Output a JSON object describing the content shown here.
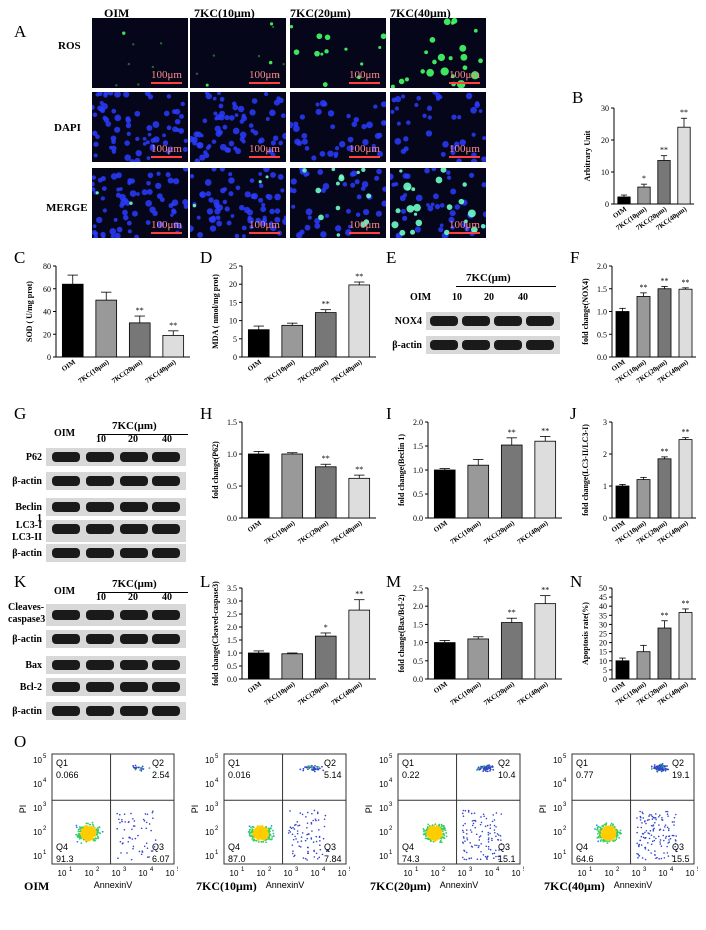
{
  "panel_letters": {
    "A": "A",
    "B": "B",
    "C": "C",
    "D": "D",
    "E": "E",
    "F": "F",
    "G": "G",
    "H": "H",
    "I": "I",
    "J": "J",
    "K": "K",
    "L": "L",
    "M": "M",
    "N": "N",
    "O": "O"
  },
  "panelA": {
    "columns": [
      "OIM",
      "7KC(10μm)",
      "7KC(20μm)",
      "7KC(40μm)"
    ],
    "rows": [
      "ROS",
      "DAPI",
      "MERGE"
    ],
    "scale_label": "100μm"
  },
  "panelE": {
    "header": "7KC(μm)",
    "lanes": [
      "OIM",
      "10",
      "20",
      "40"
    ],
    "rows": [
      "NOX4",
      "β-actin"
    ]
  },
  "panelG": {
    "header": "7KC(μm)",
    "lanes": [
      "OIM",
      "10",
      "20",
      "40"
    ],
    "rows": [
      "P62",
      "β-actin",
      "Beclin 1",
      "LC3-I",
      "LC3-II",
      "β-actin"
    ]
  },
  "panelK": {
    "header": "7KC(μm)",
    "lanes": [
      "OIM",
      "10",
      "20",
      "40"
    ],
    "rows": [
      "Cleaves-",
      "caspase3",
      "β-actin",
      "Bax",
      "Bcl-2",
      "β-actin"
    ]
  },
  "colors": {
    "c0": "#000000",
    "c1": "#999999",
    "c2": "#777777",
    "c3": "#dddddd"
  },
  "chart_data": [
    {
      "id": "B",
      "type": "bar",
      "ylabel": "Arbitrary Unit",
      "categories": [
        "OIM",
        "7KC(10μm)",
        "7KC(20μm)",
        "7KC(40μm)"
      ],
      "values": [
        2.2,
        5.3,
        13.6,
        24
      ],
      "errors": [
        0.6,
        0.9,
        1.5,
        2.8
      ],
      "sig": [
        "",
        "*",
        "**",
        "**"
      ],
      "ylim": [
        0,
        30
      ],
      "yticks": [
        "0",
        "10",
        "20",
        "30"
      ]
    },
    {
      "id": "C",
      "type": "bar",
      "ylabel": "SOD ( U/mg prot)",
      "categories": [
        "OIM",
        "7KC(10μm)",
        "7KC(20μm)",
        "7KC(40μm)"
      ],
      "values": [
        64,
        50,
        30,
        19
      ],
      "errors": [
        8,
        7,
        6,
        4
      ],
      "sig": [
        "",
        "",
        "**",
        "**"
      ],
      "ylim": [
        0,
        80
      ],
      "yticks": [
        "0",
        "20",
        "40",
        "60",
        "80"
      ]
    },
    {
      "id": "D",
      "type": "bar",
      "ylabel": "MDA ( nmol/mg prot)",
      "categories": [
        "OIM",
        "7KC(10μm)",
        "7KC(20μm)",
        "7KC(40μm)"
      ],
      "values": [
        7.5,
        8.7,
        12.2,
        19.8
      ],
      "errors": [
        1.0,
        0.6,
        0.8,
        0.8
      ],
      "sig": [
        "",
        "",
        "**",
        "**"
      ],
      "ylim": [
        0,
        25
      ],
      "yticks": [
        "0",
        "5",
        "10",
        "15",
        "20",
        "25"
      ]
    },
    {
      "id": "F",
      "type": "bar",
      "ylabel": "fold change(NOX4)",
      "categories": [
        "OIM",
        "7KC(10μm)",
        "7KC(20μm)",
        "7KC(40μm)"
      ],
      "values": [
        1.0,
        1.33,
        1.5,
        1.49
      ],
      "errors": [
        0.07,
        0.08,
        0.05,
        0.03
      ],
      "sig": [
        "",
        "**",
        "**",
        "**"
      ],
      "ylim": [
        0,
        2.0
      ],
      "yticks": [
        "0.0",
        "0.5",
        "1.0",
        "1.5",
        "2.0"
      ]
    },
    {
      "id": "H",
      "type": "bar",
      "ylabel": "fold change(P62)",
      "categories": [
        "OIM",
        "7KC(10μm)",
        "7KC(20μm)",
        "7KC(40μm)"
      ],
      "values": [
        1.0,
        1.0,
        0.8,
        0.62
      ],
      "errors": [
        0.04,
        0.02,
        0.04,
        0.05
      ],
      "sig": [
        "",
        "",
        "**",
        "**"
      ],
      "ylim": [
        0,
        1.5
      ],
      "yticks": [
        "0.0",
        "0.5",
        "1.0",
        "1.5"
      ]
    },
    {
      "id": "I",
      "type": "bar",
      "ylabel": "fold change(Beclin 1)",
      "categories": [
        "OIM",
        "7KC(10μm)",
        "7KC(20μm)",
        "7KC(40μm)"
      ],
      "values": [
        1.0,
        1.1,
        1.52,
        1.6
      ],
      "errors": [
        0.03,
        0.12,
        0.15,
        0.1
      ],
      "sig": [
        "",
        "",
        "**",
        "**"
      ],
      "ylim": [
        0,
        2.0
      ],
      "yticks": [
        "0.0",
        "0.5",
        "1.0",
        "1.5",
        "2.0"
      ]
    },
    {
      "id": "J",
      "type": "bar",
      "ylabel": "fold change(LC3-II/LC3-I)",
      "categories": [
        "OIM",
        "7KC(10μm)",
        "7KC(20μm)",
        "7KC(40μm)"
      ],
      "values": [
        1.0,
        1.2,
        1.85,
        2.45
      ],
      "errors": [
        0.05,
        0.07,
        0.06,
        0.06
      ],
      "sig": [
        "",
        "",
        "**",
        "**"
      ],
      "ylim": [
        0,
        3
      ],
      "yticks": [
        "0",
        "1",
        "2",
        "3"
      ]
    },
    {
      "id": "L",
      "type": "bar",
      "ylabel": "fold change(Cleaved-caspase3)",
      "categories": [
        "OIM",
        "7KC(10μm)",
        "7KC(20μm)",
        "7KC(40μm)"
      ],
      "values": [
        1.0,
        0.97,
        1.65,
        2.65
      ],
      "errors": [
        0.08,
        0.03,
        0.12,
        0.4
      ],
      "sig": [
        "",
        "",
        "*",
        "**"
      ],
      "ylim": [
        0,
        3.5
      ],
      "yticks": [
        "0.0",
        "0.5",
        "1.0",
        "1.5",
        "2.0",
        "2.5",
        "3.0",
        "3.5"
      ]
    },
    {
      "id": "M",
      "type": "bar",
      "ylabel": "fold change(Bax/Bcl-2)",
      "categories": [
        "OIM",
        "7KC(10μm)",
        "7KC(20μm)",
        "7KC(40μm)"
      ],
      "values": [
        1.0,
        1.1,
        1.55,
        2.07
      ],
      "errors": [
        0.06,
        0.06,
        0.12,
        0.22
      ],
      "sig": [
        "",
        "",
        "**",
        "**"
      ],
      "ylim": [
        0,
        2.5
      ],
      "yticks": [
        "0.0",
        "0.5",
        "1.0",
        "1.5",
        "2.0",
        "2.5"
      ]
    },
    {
      "id": "N",
      "type": "bar",
      "ylabel": "Apoptosis rate(%)",
      "categories": [
        "OIM",
        "7KC(10μm)",
        "7KC(20μm)",
        "7KC(40μm)"
      ],
      "values": [
        10,
        15,
        28,
        36.5
      ],
      "errors": [
        1.5,
        3.5,
        4,
        2
      ],
      "sig": [
        "",
        "",
        "**",
        "**"
      ],
      "ylim": [
        0,
        50
      ],
      "yticks": [
        "0",
        "5",
        "10",
        "15",
        "20",
        "25",
        "30",
        "35",
        "40",
        "45",
        "50"
      ]
    }
  ],
  "flow": {
    "xlabel": "AnnexinV",
    "ylabel": "PI",
    "ticks": [
      "1",
      "2",
      "3",
      "4",
      "5"
    ],
    "plots": [
      {
        "title": "OIM",
        "q1": "0.066",
        "q2": "2.54",
        "q3": "6.07",
        "q4": "91.3"
      },
      {
        "title": "7KC(10μm)",
        "q1": "0.016",
        "q2": "5.14",
        "q3": "7.84",
        "q4": "87.0"
      },
      {
        "title": "7KC(20μm)",
        "q1": "0.22",
        "q2": "10.4",
        "q3": "15.1",
        "q4": "74.3"
      },
      {
        "title": "7KC(40μm)",
        "q1": "0.77",
        "q2": "19.1",
        "q3": "15.5",
        "q4": "64.6"
      }
    ],
    "qlabels": [
      "Q1",
      "Q2",
      "Q3",
      "Q4"
    ]
  }
}
